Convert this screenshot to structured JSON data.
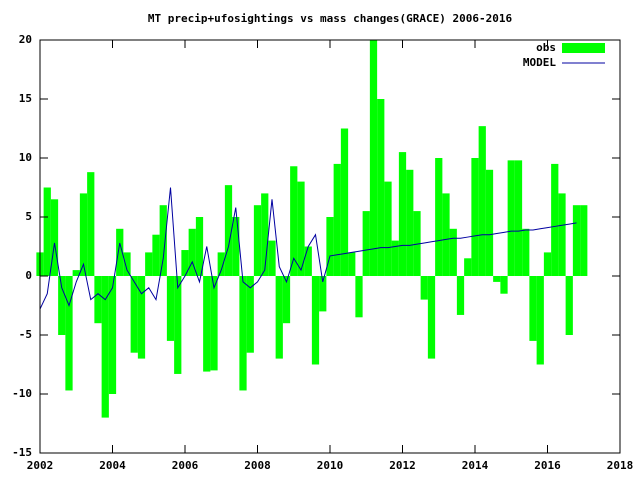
{
  "chart_data": {
    "type": "combo",
    "title": "MT precip+ufosightings vs mass changes(GRACE) 2006-2016",
    "xlim": [
      2002,
      2018
    ],
    "xticks": [
      2002,
      2004,
      2006,
      2008,
      2010,
      2012,
      2014,
      2016,
      2018
    ],
    "ylim": [
      -15,
      20
    ],
    "yticks": [
      -15,
      -10,
      -5,
      0,
      5,
      10,
      15,
      20
    ],
    "legend": "top-right",
    "series": [
      {
        "name": "obs",
        "style": "boxes",
        "color": "#00ff00",
        "x": [
          2002,
          2002.2,
          2002.4,
          2002.6,
          2002.8,
          2003,
          2003.2,
          2003.4,
          2003.6,
          2003.8,
          2004,
          2004.2,
          2004.4,
          2004.6,
          2004.8,
          2005,
          2005.2,
          2005.4,
          2005.6,
          2005.8,
          2006,
          2006.2,
          2006.4,
          2006.6,
          2006.8,
          2007,
          2007.2,
          2007.4,
          2007.6,
          2007.8,
          2008,
          2008.2,
          2008.4,
          2008.6,
          2008.8,
          2009,
          2009.2,
          2009.4,
          2009.6,
          2009.8,
          2010,
          2010.2,
          2010.4,
          2010.6,
          2010.8,
          2011,
          2011.2,
          2011.4,
          2011.6,
          2011.8,
          2012,
          2012.2,
          2012.4,
          2012.6,
          2012.8,
          2013,
          2013.2,
          2013.4,
          2013.6,
          2013.8,
          2014,
          2014.2,
          2014.4,
          2014.6,
          2014.8,
          2015,
          2015.2,
          2015.4,
          2015.6,
          2015.8,
          2016,
          2016.2,
          2016.4,
          2016.6,
          2016.8,
          2017
        ],
        "values": [
          2,
          7.5,
          6.5,
          -5,
          -9.7,
          0.5,
          7,
          8.8,
          -4,
          -12,
          -10,
          4,
          2,
          -6.5,
          -7,
          2,
          3.5,
          6,
          -5.5,
          -8.3,
          2.2,
          4,
          5,
          -8.1,
          -8,
          2,
          7.7,
          5,
          -9.7,
          -6.5,
          6,
          7,
          3,
          -7,
          -4,
          9.3,
          8,
          2.5,
          -7.5,
          -3,
          5,
          9.5,
          12.5,
          2,
          -3.5,
          5.5,
          20,
          15,
          8,
          3,
          10.5,
          9,
          5.5,
          -2,
          -7,
          10,
          7,
          4,
          -3.3,
          1.5,
          10,
          12.7,
          9,
          -0.5,
          -1.5,
          9.8,
          9.8,
          4,
          -5.5,
          -7.5,
          2,
          9.5,
          7,
          -5,
          6,
          6
        ]
      },
      {
        "name": "MODEL",
        "style": "line",
        "color": "#0000a0",
        "x": [
          2002,
          2002.2,
          2002.4,
          2002.6,
          2002.8,
          2003,
          2003.2,
          2003.4,
          2003.6,
          2003.8,
          2004,
          2004.2,
          2004.4,
          2004.6,
          2004.8,
          2005,
          2005.2,
          2005.4,
          2005.6,
          2005.8,
          2006,
          2006.2,
          2006.4,
          2006.6,
          2006.8,
          2007,
          2007.2,
          2007.4,
          2007.6,
          2007.8,
          2008,
          2008.2,
          2008.4,
          2008.6,
          2008.8,
          2009,
          2009.2,
          2009.4,
          2009.6,
          2009.8,
          2010,
          2010.2,
          2010.4,
          2010.6,
          2010.8,
          2011,
          2011.2,
          2011.4,
          2011.6,
          2011.8,
          2012,
          2012.2,
          2012.4,
          2012.6,
          2012.8,
          2013,
          2013.2,
          2013.4,
          2013.6,
          2013.8,
          2014,
          2014.2,
          2014.4,
          2014.6,
          2014.8,
          2015,
          2015.2,
          2015.4,
          2015.6,
          2015.8,
          2016,
          2016.2,
          2016.4,
          2016.6,
          2016.8
        ],
        "values": [
          -2.8,
          -1.5,
          2.8,
          -1,
          -2.5,
          -0.5,
          1,
          -2,
          -1.5,
          -2,
          -1,
          2.8,
          0.5,
          -0.5,
          -1.5,
          -1,
          -2,
          1.5,
          7.5,
          -1,
          0,
          1.2,
          -0.5,
          2.5,
          -1,
          0.5,
          2.5,
          5.8,
          -0.5,
          -1,
          -0.5,
          0.5,
          6.5,
          0.8,
          -0.5,
          1.5,
          0.5,
          2.5,
          3.5,
          -0.5,
          1.7,
          1.8,
          1.9,
          2,
          2.1,
          2.2,
          2.3,
          2.4,
          2.4,
          2.5,
          2.6,
          2.6,
          2.7,
          2.8,
          2.9,
          3,
          3.1,
          3.2,
          3.2,
          3.3,
          3.4,
          3.5,
          3.5,
          3.6,
          3.7,
          3.8,
          3.8,
          3.9,
          3.9,
          4,
          4.1,
          4.2,
          4.3,
          4.4,
          4.5
        ]
      }
    ]
  }
}
